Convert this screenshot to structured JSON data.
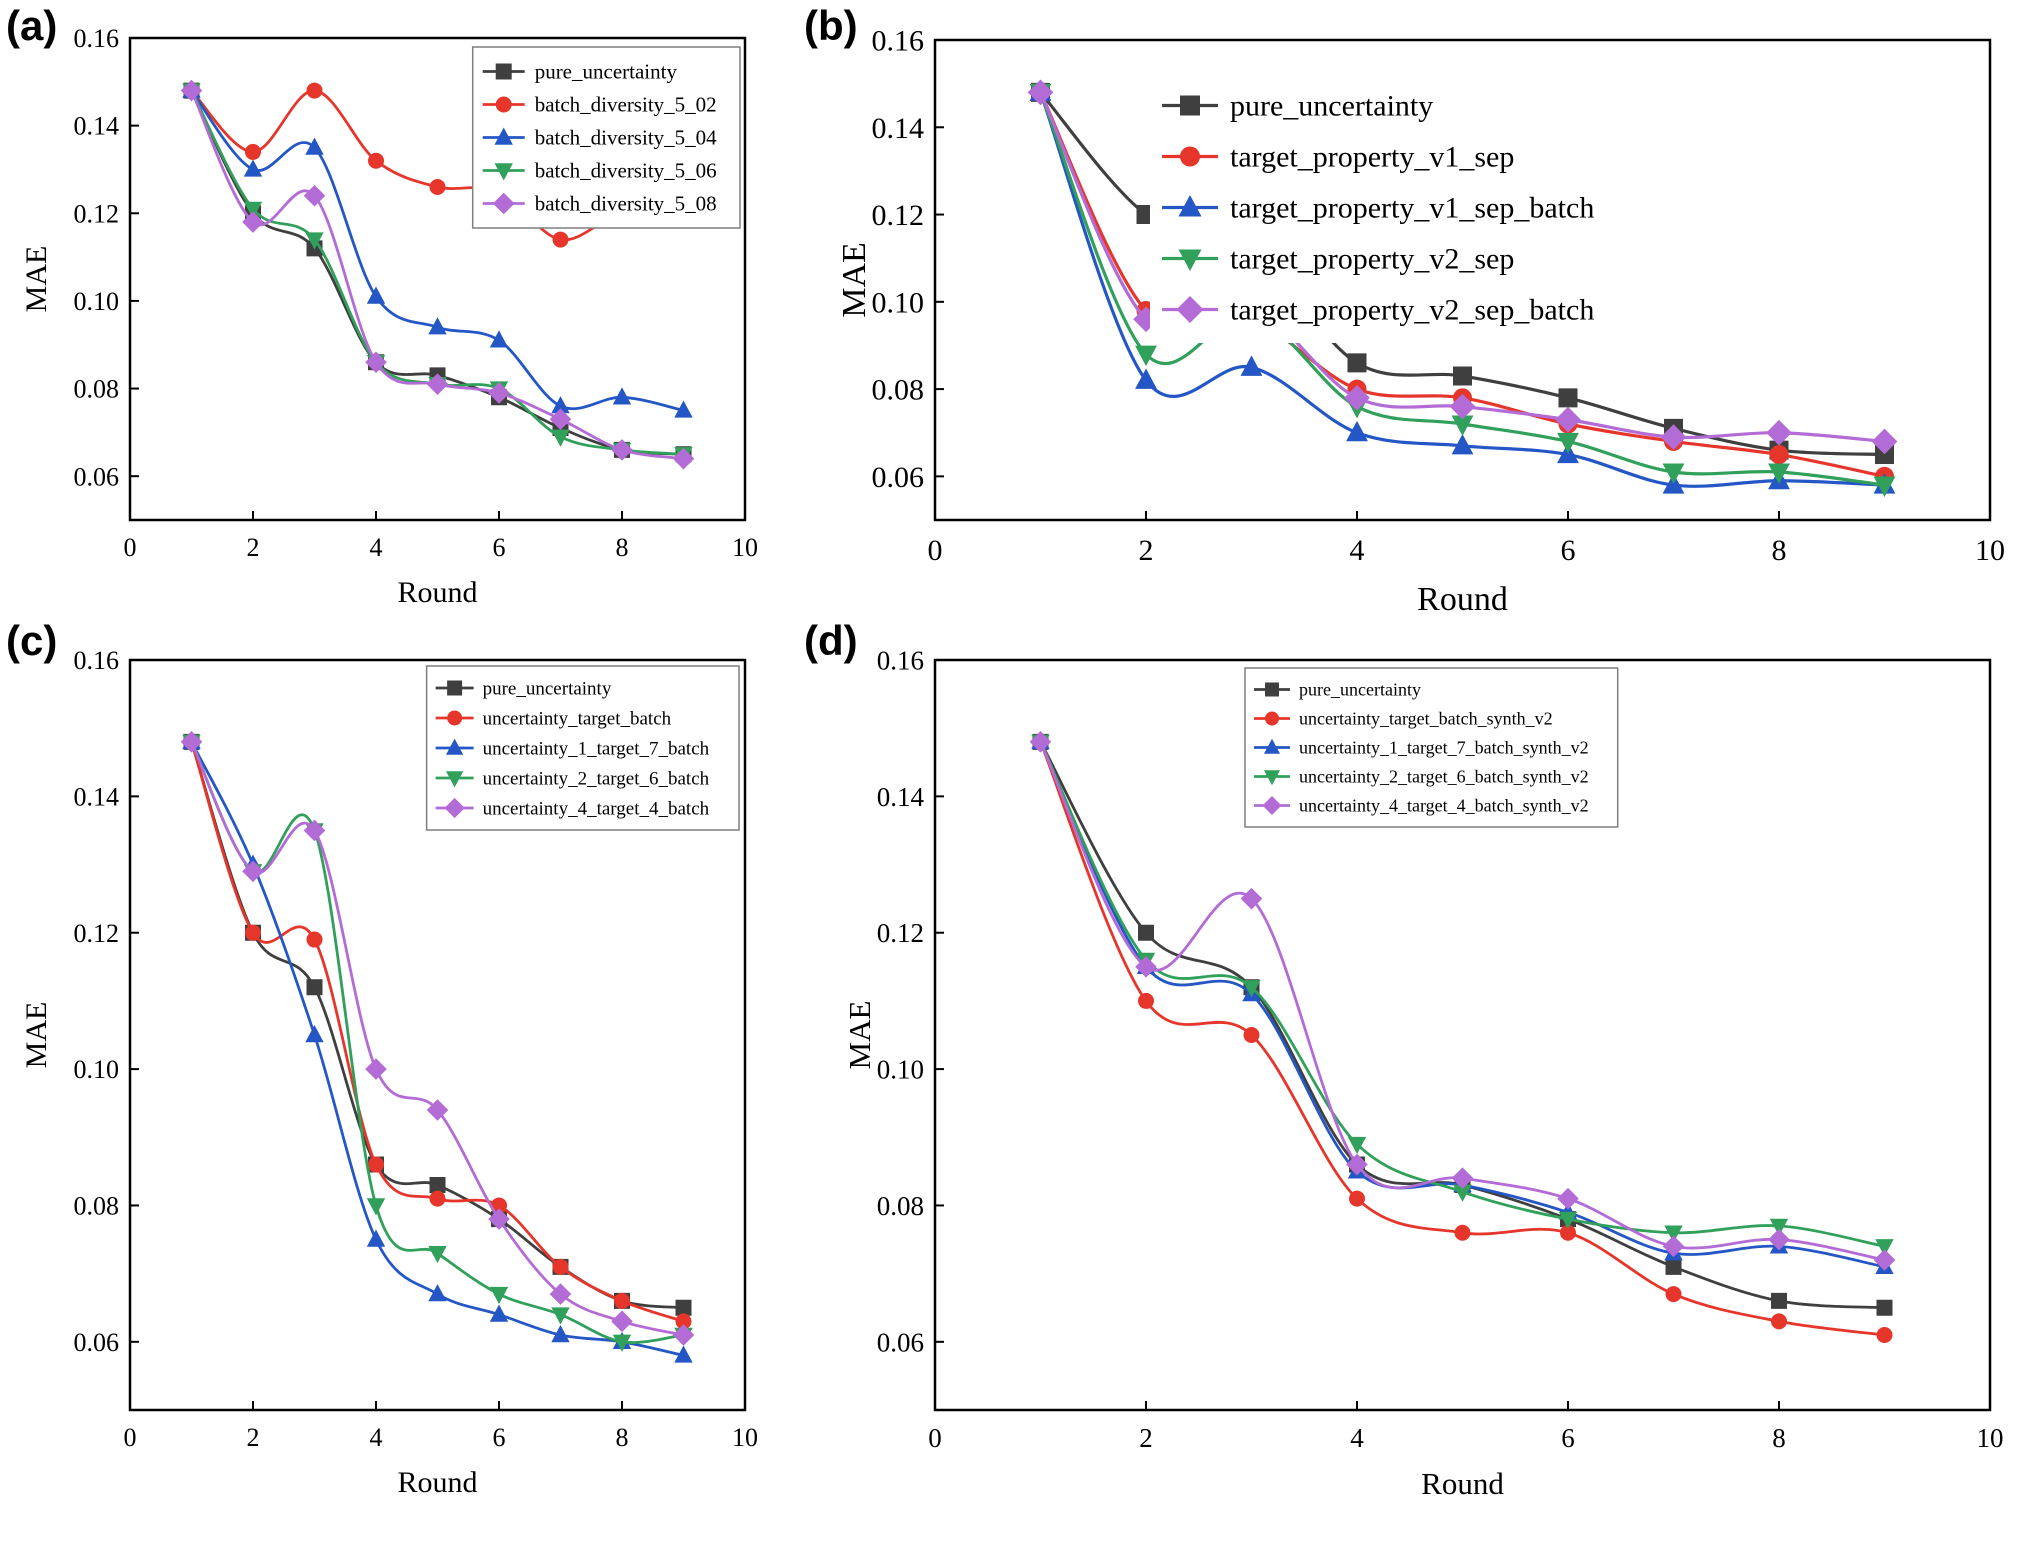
{
  "figure": {
    "background": "#ffffff",
    "panels": [
      {
        "label": "(a)"
      },
      {
        "label": "(b)"
      },
      {
        "label": "(c)"
      },
      {
        "label": "(d)"
      }
    ]
  },
  "palette": {
    "black": "#3f3f3f",
    "red": "#e6362b",
    "blue": "#2457c5",
    "green": "#30a05a",
    "purple": "#b36bd5"
  },
  "chart_data": [
    {
      "panel": "a",
      "type": "line",
      "title": "",
      "xlabel": "Round",
      "ylabel": "MAE",
      "xlim": [
        0,
        10
      ],
      "ylim": [
        0.05,
        0.16
      ],
      "xticks": [
        0,
        2,
        4,
        6,
        8,
        10
      ],
      "yticks": [
        0.06,
        0.08,
        0.1,
        0.12,
        0.14,
        0.16
      ],
      "grid": false,
      "legend_position": "upper-right",
      "x": [
        1,
        2,
        3,
        4,
        5,
        6,
        7,
        8,
        9
      ],
      "series": [
        {
          "name": "pure_uncertainty",
          "color": "black",
          "marker": "square",
          "values": [
            0.148,
            0.12,
            0.112,
            0.086,
            0.083,
            0.078,
            0.071,
            0.066,
            0.065
          ]
        },
        {
          "name": "batch_diversity_5_02",
          "color": "red",
          "marker": "circle",
          "values": [
            0.148,
            0.134,
            0.148,
            0.132,
            0.126,
            0.125,
            0.114,
            0.12,
            0.119
          ]
        },
        {
          "name": "batch_diversity_5_04",
          "color": "blue",
          "marker": "triangle-up",
          "values": [
            0.148,
            0.13,
            0.135,
            0.101,
            0.094,
            0.091,
            0.076,
            0.078,
            0.075
          ]
        },
        {
          "name": "batch_diversity_5_06",
          "color": "green",
          "marker": "triangle-down",
          "values": [
            0.148,
            0.121,
            0.114,
            0.086,
            0.081,
            0.08,
            0.069,
            0.066,
            0.065
          ]
        },
        {
          "name": "batch_diversity_5_08",
          "color": "purple",
          "marker": "diamond",
          "values": [
            0.148,
            0.118,
            0.124,
            0.086,
            0.081,
            0.079,
            0.073,
            0.066,
            0.064
          ]
        }
      ]
    },
    {
      "panel": "b",
      "type": "line",
      "title": "",
      "xlabel": "Round",
      "ylabel": "MAE",
      "xlim": [
        0,
        10
      ],
      "ylim": [
        0.05,
        0.16
      ],
      "xticks": [
        0,
        2,
        4,
        6,
        8,
        10
      ],
      "yticks": [
        0.06,
        0.08,
        0.1,
        0.12,
        0.14,
        0.16
      ],
      "grid": false,
      "legend_position": "upper-center-right",
      "x": [
        1,
        2,
        3,
        4,
        5,
        6,
        7,
        8,
        9
      ],
      "series": [
        {
          "name": "pure_uncertainty",
          "color": "black",
          "marker": "square",
          "values": [
            0.148,
            0.12,
            0.112,
            0.086,
            0.083,
            0.078,
            0.071,
            0.066,
            0.065
          ]
        },
        {
          "name": "target_property_v1_sep",
          "color": "red",
          "marker": "circle",
          "values": [
            0.148,
            0.098,
            0.096,
            0.08,
            0.078,
            0.072,
            0.068,
            0.065,
            0.06
          ]
        },
        {
          "name": "target_property_v1_sep_batch",
          "color": "blue",
          "marker": "triangle-up",
          "values": [
            0.148,
            0.082,
            0.085,
            0.07,
            0.067,
            0.065,
            0.058,
            0.059,
            0.058
          ]
        },
        {
          "name": "target_property_v2_sep",
          "color": "green",
          "marker": "triangle-down",
          "values": [
            0.148,
            0.088,
            0.097,
            0.076,
            0.072,
            0.068,
            0.061,
            0.061,
            0.058
          ]
        },
        {
          "name": "target_property_v2_sep_batch",
          "color": "purple",
          "marker": "diamond",
          "values": [
            0.148,
            0.096,
            0.099,
            0.078,
            0.076,
            0.073,
            0.069,
            0.07,
            0.068
          ]
        }
      ]
    },
    {
      "panel": "c",
      "type": "line",
      "title": "",
      "xlabel": "Round",
      "ylabel": "MAE",
      "xlim": [
        0,
        10
      ],
      "ylim": [
        0.05,
        0.16
      ],
      "xticks": [
        0,
        2,
        4,
        6,
        8,
        10
      ],
      "yticks": [
        0.06,
        0.08,
        0.1,
        0.12,
        0.14,
        0.16
      ],
      "grid": false,
      "legend_position": "upper-right",
      "x": [
        1,
        2,
        3,
        4,
        5,
        6,
        7,
        8,
        9
      ],
      "series": [
        {
          "name": "pure_uncertainty",
          "color": "black",
          "marker": "square",
          "values": [
            0.148,
            0.12,
            0.112,
            0.086,
            0.083,
            0.078,
            0.071,
            0.066,
            0.065
          ]
        },
        {
          "name": "uncertainty_target_batch",
          "color": "red",
          "marker": "circle",
          "values": [
            0.148,
            0.12,
            0.119,
            0.086,
            0.081,
            0.08,
            0.071,
            0.066,
            0.063
          ]
        },
        {
          "name": "uncertainty_1_target_7_batch",
          "color": "blue",
          "marker": "triangle-up",
          "values": [
            0.148,
            0.13,
            0.105,
            0.075,
            0.067,
            0.064,
            0.061,
            0.06,
            0.058
          ]
        },
        {
          "name": "uncertainty_2_target_6_batch",
          "color": "green",
          "marker": "triangle-down",
          "values": [
            0.148,
            0.129,
            0.135,
            0.08,
            0.073,
            0.067,
            0.064,
            0.06,
            0.061
          ]
        },
        {
          "name": "uncertainty_4_target_4_batch",
          "color": "purple",
          "marker": "diamond",
          "values": [
            0.148,
            0.129,
            0.135,
            0.1,
            0.094,
            0.078,
            0.067,
            0.063,
            0.061
          ]
        }
      ]
    },
    {
      "panel": "d",
      "type": "line",
      "title": "",
      "xlabel": "Round",
      "ylabel": "MAE",
      "xlim": [
        0,
        10
      ],
      "ylim": [
        0.05,
        0.16
      ],
      "xticks": [
        0,
        2,
        4,
        6,
        8,
        10
      ],
      "yticks": [
        0.06,
        0.08,
        0.1,
        0.12,
        0.14,
        0.16
      ],
      "grid": false,
      "legend_position": "upper-center-right",
      "x": [
        1,
        2,
        3,
        4,
        5,
        6,
        7,
        8,
        9
      ],
      "series": [
        {
          "name": "pure_uncertainty",
          "color": "black",
          "marker": "square",
          "values": [
            0.148,
            0.12,
            0.112,
            0.086,
            0.083,
            0.078,
            0.071,
            0.066,
            0.065
          ]
        },
        {
          "name": "uncertainty_target_batch_synth_v2",
          "color": "red",
          "marker": "circle",
          "values": [
            0.148,
            0.11,
            0.105,
            0.081,
            0.076,
            0.076,
            0.067,
            0.063,
            0.061
          ]
        },
        {
          "name": "uncertainty_1_target_7_batch_synth_v2",
          "color": "blue",
          "marker": "triangle-up",
          "values": [
            0.148,
            0.115,
            0.111,
            0.085,
            0.083,
            0.079,
            0.073,
            0.074,
            0.071
          ]
        },
        {
          "name": "uncertainty_2_target_6_batch_synth_v2",
          "color": "green",
          "marker": "triangle-down",
          "values": [
            0.148,
            0.116,
            0.112,
            0.089,
            0.082,
            0.078,
            0.076,
            0.077,
            0.074
          ]
        },
        {
          "name": "uncertainty_4_target_4_batch_synth_v2",
          "color": "purple",
          "marker": "diamond",
          "values": [
            0.148,
            0.115,
            0.125,
            0.086,
            0.084,
            0.081,
            0.074,
            0.075,
            0.072
          ]
        }
      ]
    }
  ]
}
